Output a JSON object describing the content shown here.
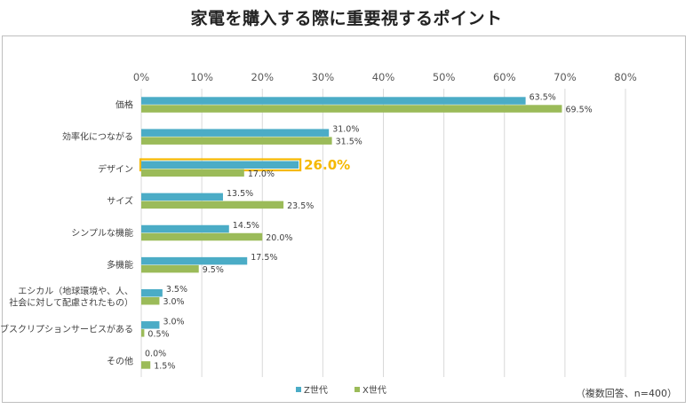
{
  "title": "家電を購入する際に重要視するポイント",
  "note": "（複数回答、n=400）",
  "chart_data": {
    "type": "bar",
    "orientation": "horizontal",
    "title": "家電を購入する際に重要視するポイント",
    "categories": [
      [
        "価格"
      ],
      [
        "効率化につながる"
      ],
      [
        "デザイン"
      ],
      [
        "サイズ"
      ],
      [
        "シンプルな機能"
      ],
      [
        "多機能"
      ],
      [
        "エシカル（地球環境や、人、",
        "社会に対して配慮されたもの）"
      ],
      [
        "サブスクリプションサービスがある"
      ],
      [
        "その他"
      ]
    ],
    "series": [
      {
        "name": "Z世代",
        "color": "#4bacc6",
        "values": [
          63.5,
          31.0,
          26.0,
          13.5,
          14.5,
          17.5,
          3.5,
          3.0,
          0.0
        ]
      },
      {
        "name": "X世代",
        "color": "#9bbb59",
        "values": [
          69.5,
          31.5,
          17.0,
          23.5,
          20.0,
          9.5,
          3.0,
          0.5,
          1.5
        ]
      }
    ],
    "xlim": [
      0,
      80
    ],
    "xticks": [
      "0%",
      "10%",
      "20%",
      "30%",
      "40%",
      "50%",
      "60%",
      "70%",
      "80%"
    ],
    "value_suffix": "%",
    "highlight": {
      "category_index": 2,
      "series_index": 0,
      "label": "26.0%",
      "color": "#f5b800"
    },
    "grid": true,
    "legend_position": "bottom"
  }
}
